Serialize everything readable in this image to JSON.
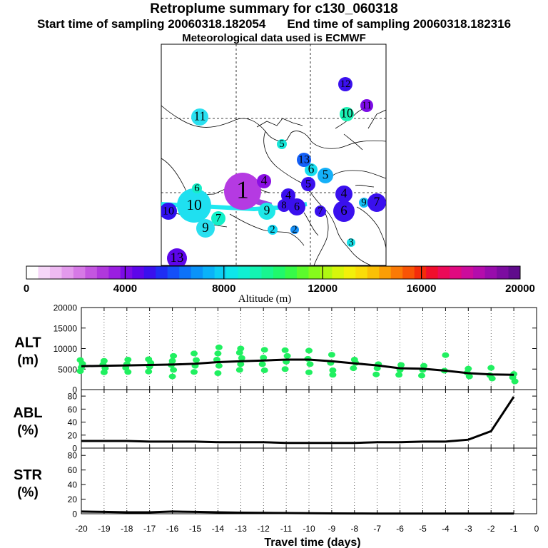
{
  "header": {
    "title": "Retroplume summary for c130_060318",
    "sampling_start": "Start time of sampling 20060318.182054",
    "sampling_end": "End time of sampling 20060318.182316",
    "met_data": "Meteorological data used is ECMWF"
  },
  "colorbar": {
    "label": "Altitude (m)",
    "tick_labels": [
      "0",
      "4000",
      "8000",
      "12000",
      "16000",
      "20000"
    ],
    "colors": [
      "#ffffff",
      "#f6d6f8",
      "#eebaf2",
      "#e39aec",
      "#d679e6",
      "#c456e0",
      "#b038dc",
      "#9a1ee0",
      "#7c0ce6",
      "#5d06ea",
      "#3a10ee",
      "#1f2ef4",
      "#1450f8",
      "#0c72f8",
      "#0a93f8",
      "#0ab2f8",
      "#0ccff4",
      "#0ee6ea",
      "#10f0d2",
      "#14f4b2",
      "#18f690",
      "#20f86c",
      "#36fa48",
      "#5cfa2c",
      "#86fa1c",
      "#b0f812",
      "#d6f60c",
      "#f2f00a",
      "#fadc08",
      "#fac006",
      "#fa9e06",
      "#fa7a06",
      "#f85406",
      "#f42c0a",
      "#f00e2c",
      "#ec0a58",
      "#e00a80",
      "#cc0c9c",
      "#b40cac",
      "#980cac",
      "#7c0ca0",
      "#600c8c"
    ]
  },
  "map": {
    "markers": [
      {
        "label": "1",
        "color": "#b53ae2",
        "size": "large"
      },
      {
        "label": "10",
        "color": "#1fe0f0",
        "size": "large"
      },
      {
        "label": "11",
        "color": "#2ae0f0",
        "size": "medium"
      },
      {
        "label": "10",
        "color": "#1af2b4",
        "size": "medium"
      },
      {
        "label": "12",
        "color": "#3a10ee",
        "size": "medium"
      },
      {
        "label": "11",
        "color": "#7c0ce6",
        "size": "medium"
      },
      {
        "label": "5",
        "color": "#18e6d8",
        "size": "small"
      },
      {
        "label": "13",
        "color": "#5d06ea",
        "size": "medium"
      },
      {
        "label": "6",
        "color": "#17def0",
        "size": "medium"
      },
      {
        "label": "5",
        "color": "#14b0f8",
        "size": "medium"
      },
      {
        "label": "4",
        "color": "#8a10e4",
        "size": "medium"
      },
      {
        "label": "6",
        "color": "#16f0c8",
        "size": "small"
      },
      {
        "label": "13",
        "color": "#1460f8",
        "size": "medium"
      },
      {
        "label": "9",
        "color": "#2ae0f0",
        "size": "medium"
      },
      {
        "label": "7",
        "color": "#12f0c8",
        "size": "medium"
      },
      {
        "label": "10",
        "color": "#3010ee",
        "size": "medium"
      },
      {
        "label": "2",
        "color": "#14d8f4",
        "size": "small"
      },
      {
        "label": "2",
        "color": "#1490f8",
        "size": "small"
      },
      {
        "label": "3",
        "color": "#18e0e8",
        "size": "small"
      },
      {
        "label": "4",
        "color": "#3a10ee",
        "size": "medium"
      },
      {
        "label": "6",
        "color": "#3a10ee",
        "size": "medium"
      },
      {
        "label": "9",
        "color": "#14c0f4",
        "size": "small"
      },
      {
        "label": "7",
        "color": "#3a10ee",
        "size": "medium"
      },
      {
        "label": "4",
        "color": "#3a10ee",
        "size": "medium"
      },
      {
        "label": "7",
        "color": "#3a10ee",
        "size": "medium"
      },
      {
        "label": "9",
        "color": "#1ee8e8",
        "size": "medium"
      },
      {
        "label": "5",
        "color": "#3a10ee",
        "size": "medium"
      },
      {
        "label": "6",
        "color": "#3a10ee",
        "size": "medium"
      },
      {
        "label": "8",
        "color": "#3a10ee",
        "size": "medium"
      }
    ]
  },
  "chart_data": [
    {
      "type": "scatter",
      "panel": "ALT",
      "ylabel": "ALT",
      "yunit": "(m)",
      "ylim": [
        0,
        20000
      ],
      "yticks": [
        0,
        5000,
        10000,
        15000,
        20000
      ],
      "xlim": [
        -20,
        0
      ],
      "point_color": "#20f060",
      "x": [
        -20,
        -20,
        -20,
        -20,
        -19,
        -19,
        -19,
        -19,
        -18,
        -18,
        -18,
        -18,
        -17,
        -17,
        -17,
        -17,
        -16,
        -16,
        -16,
        -16,
        -16,
        -15,
        -15,
        -15,
        -15,
        -14,
        -14,
        -14,
        -14,
        -14,
        -13,
        -13,
        -13,
        -13,
        -13,
        -12,
        -12,
        -12,
        -12,
        -11,
        -11,
        -11,
        -11,
        -10,
        -10,
        -10,
        -10,
        -9,
        -9,
        -9,
        -9,
        -8,
        -8,
        -8,
        -7,
        -7,
        -7,
        -6,
        -6,
        -6,
        -5,
        -5,
        -5,
        -4,
        -4,
        -3,
        -3,
        -3,
        -2,
        -2,
        -2,
        -1,
        -1,
        -1
      ],
      "y": [
        4500,
        5400,
        6300,
        7200,
        4200,
        5200,
        6100,
        7000,
        4300,
        5300,
        6200,
        7300,
        4400,
        5600,
        6500,
        7400,
        3200,
        4800,
        6000,
        7000,
        8200,
        4300,
        5800,
        7200,
        8800,
        4000,
        5800,
        7300,
        8800,
        10300,
        4800,
        6200,
        7700,
        9000,
        10000,
        4700,
        6200,
        7800,
        9700,
        5000,
        6800,
        8200,
        9600,
        4200,
        6200,
        7500,
        9500,
        4700,
        6500,
        8500,
        3600,
        5200,
        7300,
        6500,
        3700,
        5200,
        6200,
        3600,
        4800,
        6000,
        3400,
        4800,
        5800,
        4600,
        8400,
        3200,
        4100,
        5100,
        2700,
        3500,
        5300,
        2000,
        3000,
        3800
      ],
      "mean_line": [
        [
          -20,
          5700
        ],
        [
          -19,
          5800
        ],
        [
          -18,
          5900
        ],
        [
          -17,
          6000
        ],
        [
          -16,
          6100
        ],
        [
          -15,
          6300
        ],
        [
          -14,
          6700
        ],
        [
          -13,
          6900
        ],
        [
          -12,
          7100
        ],
        [
          -11,
          7300
        ],
        [
          -10,
          7300
        ],
        [
          -9,
          6900
        ],
        [
          -8,
          6400
        ],
        [
          -7,
          5900
        ],
        [
          -6,
          5200
        ],
        [
          -5,
          5100
        ],
        [
          -4,
          4600
        ],
        [
          -3,
          4000
        ],
        [
          -2,
          3700
        ],
        [
          -1,
          3600
        ]
      ]
    },
    {
      "type": "line",
      "panel": "ABL",
      "ylabel": "ABL",
      "yunit": "(%)",
      "ylim": [
        0,
        90
      ],
      "yticks": [
        0,
        20,
        40,
        60,
        80
      ],
      "xlim": [
        -20,
        0
      ],
      "x": [
        -20,
        -19,
        -18,
        -17,
        -16,
        -15,
        -14,
        -13,
        -12,
        -11,
        -10,
        -9,
        -8,
        -7,
        -6,
        -5,
        -4,
        -3,
        -2,
        -1
      ],
      "values": [
        11,
        11,
        11,
        10,
        10,
        10,
        9,
        9,
        9,
        8,
        8,
        8,
        8,
        9,
        9,
        10,
        10,
        13,
        26,
        79
      ]
    },
    {
      "type": "line",
      "panel": "STR",
      "ylabel": "STR",
      "yunit": "(%)",
      "ylim": [
        0,
        90
      ],
      "yticks": [
        0,
        20,
        40,
        60,
        80
      ],
      "xlim": [
        -20,
        0
      ],
      "x": [
        -20,
        -19,
        -18,
        -17,
        -16,
        -15,
        -14,
        -13,
        -12,
        -11,
        -10,
        -9,
        -8,
        -7,
        -6,
        -5,
        -4,
        -3,
        -2,
        -1
      ],
      "values": [
        3,
        2.5,
        2,
        2,
        3,
        2.5,
        2,
        1.5,
        1.2,
        1,
        0.8,
        0.5,
        0.4,
        0.3,
        0.3,
        0.2,
        0.2,
        0.2,
        0.2,
        0.2
      ],
      "xlabel": "Travel time (days)",
      "xtick_labels": [
        "-20",
        "-19",
        "-18",
        "-17",
        "-16",
        "-15",
        "-14",
        "-13",
        "-12",
        "-11",
        "-10",
        "-9",
        "-8",
        "-7",
        "-6",
        "-5",
        "-4",
        "-3",
        "-2",
        "-1",
        "0"
      ]
    }
  ]
}
